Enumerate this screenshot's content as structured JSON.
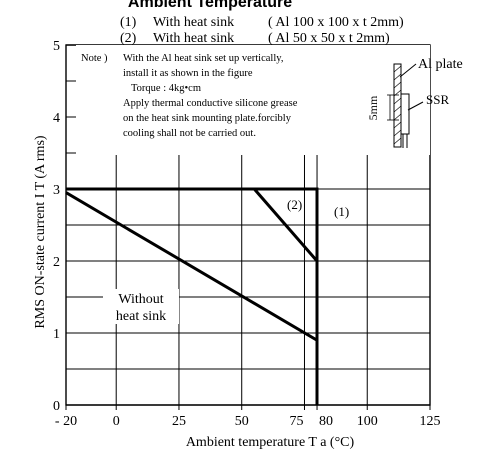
{
  "header": {
    "title_fragment": "Ambient Temperature",
    "legend": [
      {
        "num": "(1)",
        "text": "With heat sink",
        "spec": "( Al 100 x 100 x t 2mm)"
      },
      {
        "num": "(2)",
        "text": "With heat sink",
        "spec": "( Al  50 x  50 x t 2mm)"
      }
    ]
  },
  "note": {
    "prefix": "Note )",
    "lines": [
      "With the Al heat sink set up vertically,",
      "install it as shown in the figure",
      "Torque : 4kg•cm",
      "Apply thermal conductive silicone grease",
      "on the heat sink mounting plate.forcibly",
      "cooling shall not be carried out."
    ]
  },
  "inset": {
    "al_plate": "Al plate",
    "ssr": "SSR",
    "dim": "5mm"
  },
  "chart_data": {
    "type": "line",
    "xlabel": "Ambient temperature T a (°C)",
    "ylabel": "RMS ON-state current I T (A rms)",
    "xlim": [
      -20,
      125
    ],
    "ylim": [
      0,
      5
    ],
    "xticks": [
      -20,
      0,
      25,
      50,
      75,
      80,
      100,
      125
    ],
    "xtick_labels": [
      "- 20",
      "0",
      "25",
      "50",
      "75",
      "80",
      "100",
      "125"
    ],
    "yticks": [
      0,
      1,
      2,
      3,
      4,
      5
    ],
    "ytick_labels": [
      "0",
      "1",
      "2",
      "3",
      "4",
      "5"
    ],
    "grid": true,
    "series": [
      {
        "name": "(1)",
        "x": [
          -20,
          80,
          80
        ],
        "y": [
          3,
          3,
          0
        ]
      },
      {
        "name": "(2)",
        "x": [
          -20,
          55,
          80,
          80
        ],
        "y": [
          3,
          3,
          2,
          0
        ]
      },
      {
        "name": "Without heat sink",
        "x": [
          -20,
          80,
          80
        ],
        "y": [
          2.95,
          0.9,
          0
        ]
      }
    ],
    "annotations": {
      "without_line1": "Without",
      "without_line2": "heat sink"
    }
  }
}
